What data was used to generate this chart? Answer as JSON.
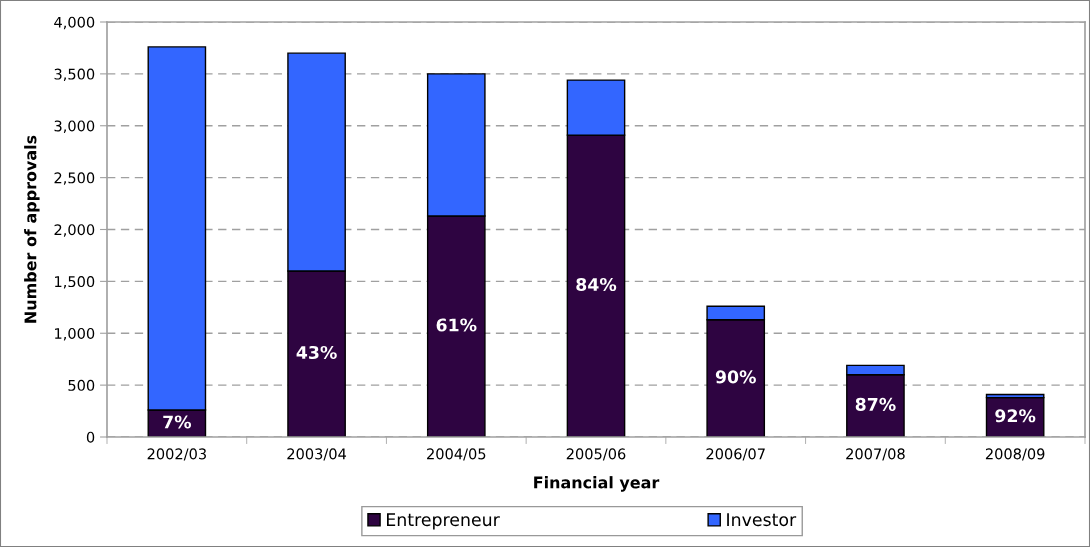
{
  "chart_data": {
    "type": "bar",
    "stacked": true,
    "xlabel": "Financial year",
    "ylabel": "Number of approvals",
    "categories": [
      "2002/03",
      "2003/04",
      "2004/05",
      "2005/06",
      "2006/07",
      "2007/08",
      "2008/09"
    ],
    "series": [
      {
        "name": "Entrepreneur",
        "color": "#2e0441",
        "values": [
          260,
          1600,
          2130,
          2910,
          1130,
          600,
          380
        ]
      },
      {
        "name": "Investor",
        "color": "#3366ff",
        "values": [
          3500,
          2100,
          1370,
          530,
          130,
          90,
          30
        ]
      }
    ],
    "annotations": [
      "7%",
      "43%",
      "61%",
      "84%",
      "90%",
      "87%",
      "92%"
    ],
    "ylim": [
      0,
      4000
    ],
    "yticks": [
      0,
      500,
      {
        "value": 1000,
        "label": "1,000"
      },
      {
        "value": 1500,
        "label": "1,500"
      },
      {
        "value": 2000,
        "label": "2,000"
      },
      {
        "value": 2500,
        "label": "2,500"
      },
      {
        "value": 3000,
        "label": "3,000"
      },
      {
        "value": 3500,
        "label": "3,500"
      },
      {
        "value": 4000,
        "label": "4,000"
      }
    ],
    "grid": "y",
    "legend": "bottom"
  }
}
